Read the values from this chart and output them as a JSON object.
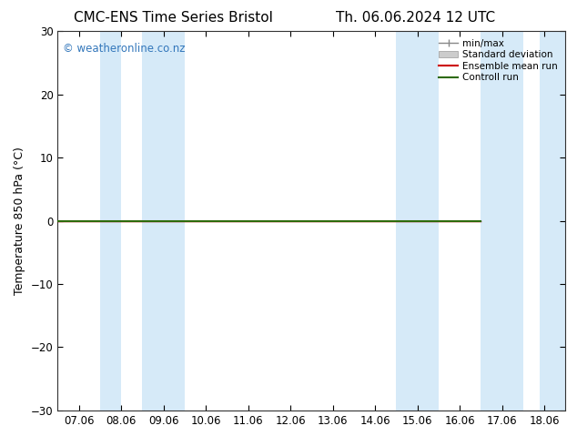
{
  "title_left": "CMC-ENS Time Series Bristol",
  "title_right": "Th. 06.06.2024 12 UTC",
  "ylabel": "Temperature 850 hPa (°C)",
  "ylim": [
    -30,
    30
  ],
  "yticks": [
    -30,
    -20,
    -10,
    0,
    10,
    20,
    30
  ],
  "xtick_labels": [
    "07.06",
    "08.06",
    "09.06",
    "10.06",
    "11.06",
    "12.06",
    "13.06",
    "14.06",
    "15.06",
    "16.06",
    "17.06",
    "18.06"
  ],
  "xtick_positions": [
    0,
    1,
    2,
    3,
    4,
    5,
    6,
    7,
    8,
    9,
    10,
    11
  ],
  "xlim": [
    -0.5,
    11.5
  ],
  "shaded_bands": [
    {
      "x_start": 0.5,
      "x_end": 1.0
    },
    {
      "x_start": 1.5,
      "x_end": 2.5
    },
    {
      "x_start": 7.5,
      "x_end": 8.5
    },
    {
      "x_start": 9.5,
      "x_end": 10.5
    },
    {
      "x_start": 10.9,
      "x_end": 11.5
    }
  ],
  "shaded_color": "#d6eaf8",
  "line_x_end": 9.5,
  "ensemble_mean_color": "#cc0000",
  "control_run_color": "#2d6a0a",
  "min_max_color": "#888888",
  "std_dev_color": "#aaaaaa",
  "watermark_text": "© weatheronline.co.nz",
  "watermark_color": "#3377bb",
  "background_color": "#ffffff",
  "legend_labels": [
    "min/max",
    "Standard deviation",
    "Ensemble mean run",
    "Controll run"
  ],
  "legend_colors": [
    "#888888",
    "#aaaaaa",
    "#cc0000",
    "#2d6a0a"
  ],
  "title_fontsize": 11,
  "axis_fontsize": 9,
  "tick_fontsize": 8.5
}
